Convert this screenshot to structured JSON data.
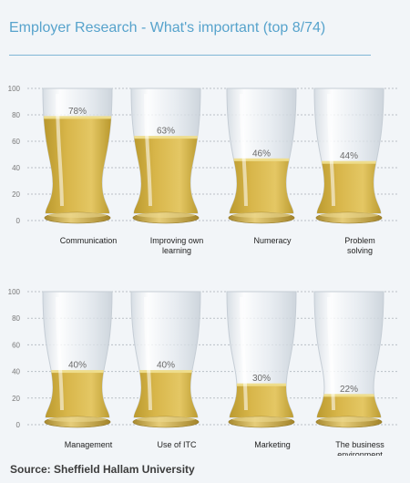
{
  "title": "Employer Research - What's important (top 8/74)",
  "source": "Source: Sheffield Hallam University",
  "colors": {
    "beer": "#d8b64a",
    "beer_dark": "#b8972c",
    "foam": "#eedd8c",
    "glass": "#e3e8ed",
    "base_gold": "#c9a84a",
    "grid": "#b9c0c6",
    "accent": "#57a3cc"
  },
  "chart_data": [
    {
      "type": "bar",
      "categories": [
        "Communication",
        "Improving own learning",
        "Numeracy",
        "Problem solving"
      ],
      "category_lines": [
        [
          "Communication"
        ],
        [
          "Improving own",
          "learning"
        ],
        [
          "Numeracy"
        ],
        [
          "Problem",
          "solving"
        ]
      ],
      "values": [
        78,
        63,
        46,
        44
      ],
      "value_labels": [
        "78%",
        "63%",
        "46%",
        "44%"
      ],
      "ylim": [
        0,
        100
      ],
      "yticks": [
        0,
        20,
        40,
        60,
        80,
        100
      ]
    },
    {
      "type": "bar",
      "categories": [
        "Management",
        "Use of ITC",
        "Marketing",
        "The business environment"
      ],
      "category_lines": [
        [
          "Management"
        ],
        [
          "Use of ITC"
        ],
        [
          "Marketing"
        ],
        [
          "The business",
          "environment"
        ]
      ],
      "values": [
        40,
        40,
        30,
        22
      ],
      "value_labels": [
        "40%",
        "40%",
        "30%",
        "22%"
      ],
      "ylim": [
        0,
        100
      ],
      "yticks": [
        0,
        20,
        40,
        60,
        80,
        100
      ]
    }
  ]
}
